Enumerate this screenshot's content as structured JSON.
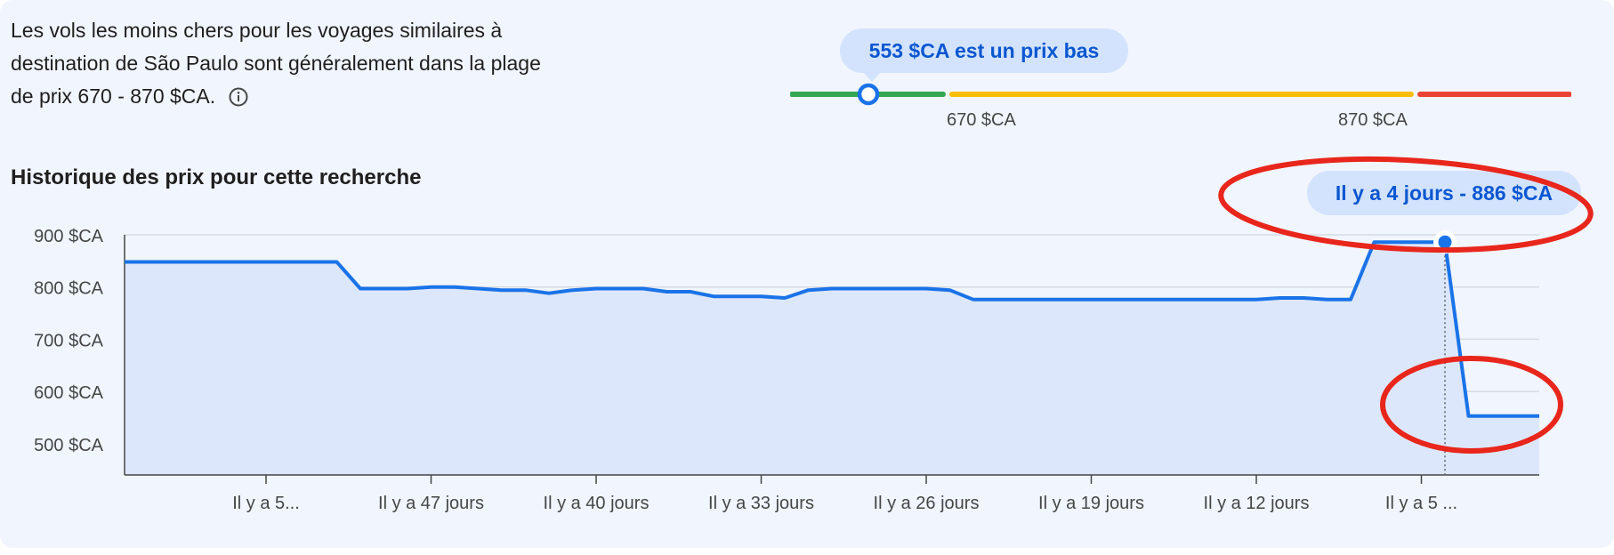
{
  "summary": {
    "line1": "Les vols les moins chers pour les voyages similaires à",
    "line2": "destination de São Paulo sont généralement dans la plage",
    "line3": "de prix 670 - 870 $CA."
  },
  "price_range": {
    "tooltip": "553 $CA est un prix bas",
    "current_price": 553,
    "low_threshold": 670,
    "high_threshold": 870,
    "low_label": "670 $CA",
    "high_label": "870 $CA",
    "segment_colors": {
      "low": "#34a853",
      "typical": "#fbbc04",
      "high": "#ea4335"
    },
    "marker_color": "#1a73e8"
  },
  "history": {
    "title": "Historique des prix pour cette recherche",
    "hover_tooltip": "Il y a 4 jours - 886 $CA"
  },
  "annotation_color": "#e8261c",
  "chart_data": {
    "type": "area",
    "title": "Historique des prix pour cette recherche",
    "xlabel": "",
    "ylabel": "",
    "ylim": [
      440,
      900
    ],
    "y_ticks": [
      900,
      800,
      700,
      600,
      500
    ],
    "y_tick_labels": [
      "900 $CA",
      "800 $CA",
      "700 $CA",
      "600 $CA",
      "500 $CA"
    ],
    "x_ticks": [
      54,
      47,
      40,
      33,
      26,
      19,
      12,
      5
    ],
    "x_tick_labels": [
      "Il y a 5...",
      "Il y a 47 jours",
      "Il y a 40 jours",
      "Il y a 33 jours",
      "Il y a 26 jours",
      "Il y a 19 jours",
      "Il y a 12 jours",
      "Il y a 5 ..."
    ],
    "x_range": [
      60,
      0
    ],
    "grid": true,
    "line_color": "#1a73e8",
    "fill_color": "#dde7fb",
    "highlight": {
      "x": 4,
      "y": 886
    },
    "series": [
      {
        "x": [
          60,
          51,
          50,
          49,
          48,
          47,
          46,
          45,
          44,
          43,
          42,
          41,
          40,
          39,
          38,
          37,
          36,
          35,
          34,
          33,
          32,
          31,
          30,
          29,
          28,
          27,
          26,
          25,
          24,
          23,
          22,
          21,
          20,
          19,
          18,
          17,
          16,
          15,
          14,
          13,
          12,
          11,
          10,
          9,
          8,
          7,
          6,
          5,
          4,
          3,
          2,
          1,
          0
        ],
        "values": [
          848,
          848,
          797,
          797,
          797,
          800,
          800,
          797,
          794,
          794,
          788,
          794,
          797,
          797,
          797,
          791,
          791,
          782,
          782,
          782,
          779,
          794,
          797,
          797,
          797,
          797,
          797,
          794,
          776,
          776,
          776,
          776,
          776,
          776,
          776,
          776,
          776,
          776,
          776,
          776,
          776,
          779,
          779,
          776,
          776,
          886,
          886,
          886,
          886,
          553,
          553,
          553,
          553
        ]
      }
    ]
  }
}
